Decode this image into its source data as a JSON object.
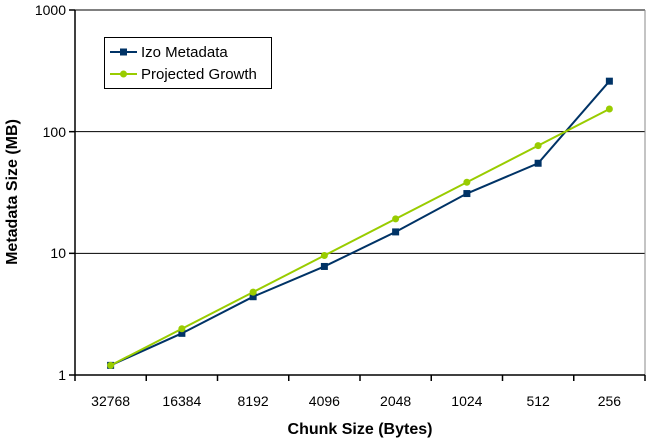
{
  "chart_data": {
    "type": "line",
    "title": "",
    "xlabel": "Chunk Size (Bytes)",
    "ylabel": "Metadata Size (MB)",
    "x_categories": [
      "32768",
      "16384",
      "8192",
      "4096",
      "2048",
      "1024",
      "512",
      "256"
    ],
    "y_scale": "log",
    "y_ticks": [
      1,
      10,
      100,
      1000
    ],
    "ylim": [
      1,
      1000
    ],
    "grid": true,
    "legend_position": "top-left-inside",
    "axis_color": "#000000",
    "plot_border_color": "#888888",
    "background_color": "#ffffff",
    "series": [
      {
        "name": "Izo Metadata",
        "color": "#003366",
        "marker": "square",
        "values": [
          1.2,
          2.2,
          4.4,
          7.8,
          15,
          31,
          55,
          260
        ]
      },
      {
        "name": "Projected Growth",
        "color": "#99cc00",
        "marker": "circle",
        "values": [
          1.2,
          2.4,
          4.8,
          9.6,
          19.2,
          38.4,
          76.8,
          153.6
        ]
      }
    ]
  }
}
